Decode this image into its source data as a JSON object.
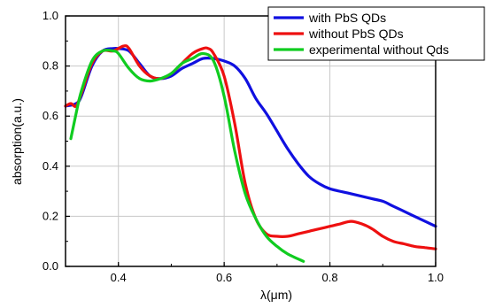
{
  "chart_data": {
    "type": "line",
    "title": "",
    "xlabel": "λ(μm)",
    "ylabel": "absorption(a.u.)",
    "xlim": [
      0.3,
      1.0
    ],
    "ylim": [
      0.0,
      1.0
    ],
    "xticks": [
      "0.4",
      "0.6",
      "0.8",
      "1.0"
    ],
    "xtick_values": [
      0.4,
      0.6,
      0.8,
      1.0
    ],
    "yticks": [
      "0.0",
      "0.2",
      "0.4",
      "0.6",
      "0.8",
      "1.0"
    ],
    "ytick_values": [
      0.0,
      0.2,
      0.4,
      0.6,
      0.8,
      1.0
    ],
    "grid": true,
    "legend_position": "top-right",
    "series": [
      {
        "name": "with PbS QDs",
        "color": "#1010e0",
        "points": [
          [
            0.3,
            0.64
          ],
          [
            0.32,
            0.65
          ],
          [
            0.33,
            0.68
          ],
          [
            0.35,
            0.8
          ],
          [
            0.37,
            0.86
          ],
          [
            0.39,
            0.87
          ],
          [
            0.4,
            0.87
          ],
          [
            0.42,
            0.86
          ],
          [
            0.44,
            0.81
          ],
          [
            0.46,
            0.76
          ],
          [
            0.48,
            0.75
          ],
          [
            0.5,
            0.76
          ],
          [
            0.52,
            0.79
          ],
          [
            0.54,
            0.81
          ],
          [
            0.56,
            0.83
          ],
          [
            0.58,
            0.83
          ],
          [
            0.6,
            0.82
          ],
          [
            0.62,
            0.8
          ],
          [
            0.64,
            0.75
          ],
          [
            0.66,
            0.67
          ],
          [
            0.68,
            0.61
          ],
          [
            0.7,
            0.54
          ],
          [
            0.72,
            0.47
          ],
          [
            0.74,
            0.41
          ],
          [
            0.76,
            0.36
          ],
          [
            0.78,
            0.33
          ],
          [
            0.8,
            0.31
          ],
          [
            0.84,
            0.29
          ],
          [
            0.88,
            0.27
          ],
          [
            0.9,
            0.26
          ],
          [
            0.92,
            0.24
          ],
          [
            0.95,
            0.21
          ],
          [
            0.98,
            0.18
          ],
          [
            1.0,
            0.16
          ]
        ]
      },
      {
        "name": "without PbS QDs",
        "color": "#ee1010",
        "points": [
          [
            0.3,
            0.64
          ],
          [
            0.31,
            0.65
          ],
          [
            0.32,
            0.64
          ],
          [
            0.33,
            0.69
          ],
          [
            0.35,
            0.81
          ],
          [
            0.37,
            0.86
          ],
          [
            0.39,
            0.86
          ],
          [
            0.41,
            0.88
          ],
          [
            0.42,
            0.87
          ],
          [
            0.44,
            0.8
          ],
          [
            0.46,
            0.76
          ],
          [
            0.48,
            0.75
          ],
          [
            0.5,
            0.77
          ],
          [
            0.52,
            0.81
          ],
          [
            0.54,
            0.85
          ],
          [
            0.56,
            0.87
          ],
          [
            0.57,
            0.87
          ],
          [
            0.58,
            0.85
          ],
          [
            0.6,
            0.76
          ],
          [
            0.62,
            0.57
          ],
          [
            0.64,
            0.33
          ],
          [
            0.66,
            0.19
          ],
          [
            0.68,
            0.13
          ],
          [
            0.7,
            0.12
          ],
          [
            0.72,
            0.12
          ],
          [
            0.74,
            0.13
          ],
          [
            0.76,
            0.14
          ],
          [
            0.78,
            0.15
          ],
          [
            0.8,
            0.16
          ],
          [
            0.82,
            0.17
          ],
          [
            0.84,
            0.18
          ],
          [
            0.86,
            0.17
          ],
          [
            0.88,
            0.15
          ],
          [
            0.9,
            0.12
          ],
          [
            0.92,
            0.1
          ],
          [
            0.94,
            0.09
          ],
          [
            0.96,
            0.08
          ],
          [
            0.98,
            0.075
          ],
          [
            1.0,
            0.07
          ]
        ]
      },
      {
        "name": "experimental without Qds",
        "color": "#10cc20",
        "points": [
          [
            0.31,
            0.51
          ],
          [
            0.32,
            0.61
          ],
          [
            0.33,
            0.7
          ],
          [
            0.35,
            0.82
          ],
          [
            0.37,
            0.86
          ],
          [
            0.39,
            0.86
          ],
          [
            0.4,
            0.85
          ],
          [
            0.42,
            0.79
          ],
          [
            0.44,
            0.75
          ],
          [
            0.46,
            0.74
          ],
          [
            0.48,
            0.75
          ],
          [
            0.5,
            0.77
          ],
          [
            0.52,
            0.81
          ],
          [
            0.54,
            0.83
          ],
          [
            0.56,
            0.85
          ],
          [
            0.58,
            0.82
          ],
          [
            0.6,
            0.68
          ],
          [
            0.62,
            0.46
          ],
          [
            0.64,
            0.29
          ],
          [
            0.66,
            0.19
          ],
          [
            0.68,
            0.12
          ],
          [
            0.7,
            0.08
          ],
          [
            0.72,
            0.05
          ],
          [
            0.75,
            0.02
          ]
        ]
      }
    ]
  }
}
